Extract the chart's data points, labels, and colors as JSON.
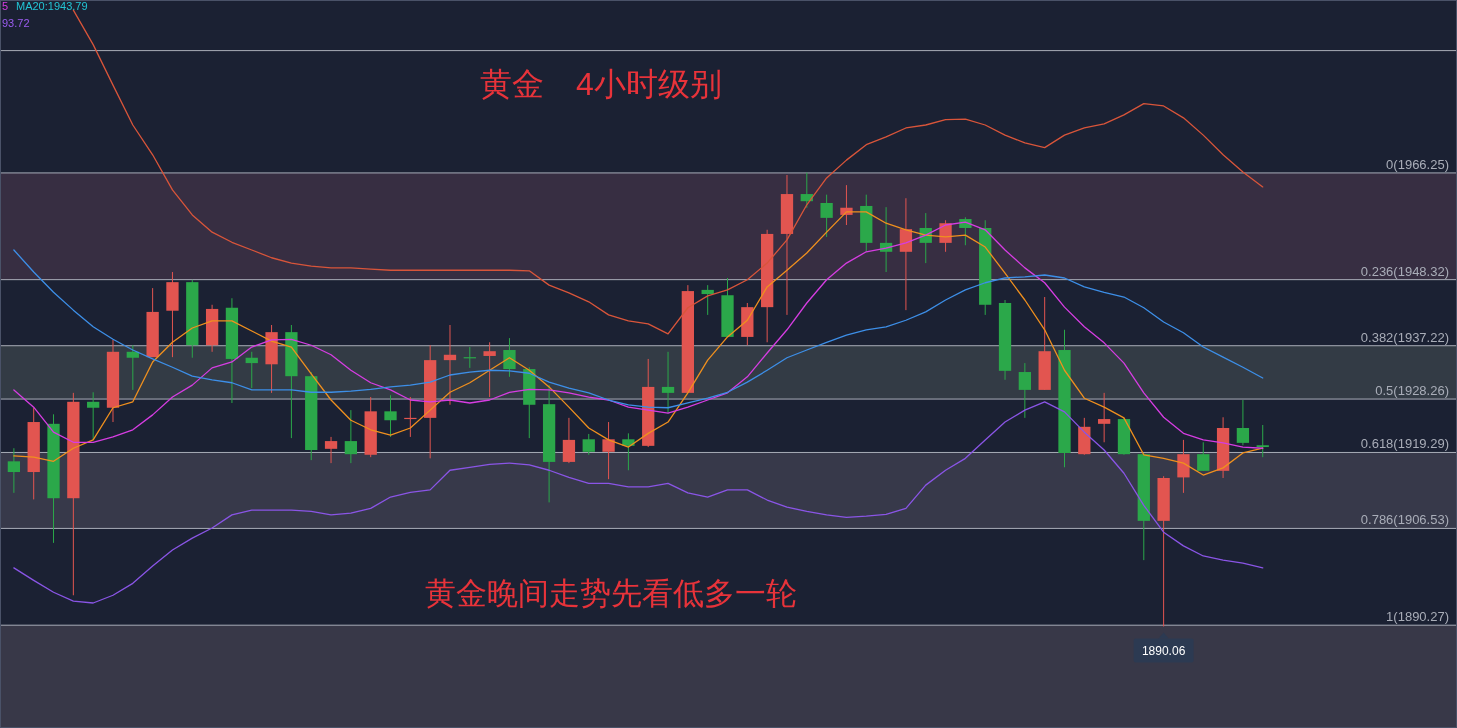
{
  "chart_data": {
    "type": "candlestick",
    "title": "黄金　4小时级别",
    "categories": [
      null,
      null,
      null,
      null,
      null,
      null,
      null,
      null,
      null,
      null,
      null,
      null,
      null,
      null,
      null,
      null,
      null,
      null,
      null,
      null,
      null,
      null,
      null,
      null,
      null,
      null,
      null,
      null,
      null,
      null,
      null,
      null,
      null,
      null,
      null,
      null,
      null,
      null,
      null,
      null,
      null,
      null,
      null,
      null,
      null,
      null,
      null,
      null,
      null,
      null,
      null,
      null,
      null,
      null,
      null,
      null,
      null,
      null,
      null,
      null,
      null,
      null,
      null,
      null
    ],
    "ylim": [
      1873.0,
      1995.3
    ],
    "ohlc": [
      [
        1917.8,
        1920.0,
        1912.5,
        1916.0
      ],
      [
        1916.0,
        1926.8,
        1911.4,
        1924.4
      ],
      [
        1924.1,
        1925.7,
        1904.1,
        1911.6
      ],
      [
        1911.6,
        1929.3,
        1895.3,
        1927.8
      ],
      [
        1927.8,
        1929.4,
        1921.4,
        1926.8
      ],
      [
        1926.8,
        1938.2,
        1924.4,
        1936.2
      ],
      [
        1936.2,
        1937.3,
        1929.8,
        1935.2
      ],
      [
        1935.3,
        1946.9,
        1935.3,
        1942.9
      ],
      [
        1943.1,
        1949.6,
        1935.3,
        1947.9
      ],
      [
        1947.9,
        1948.3,
        1935.2,
        1937.3
      ],
      [
        1937.3,
        1944.1,
        1936.2,
        1943.4
      ],
      [
        1943.6,
        1945.2,
        1927.6,
        1935.0
      ],
      [
        1935.2,
        1936.2,
        1930.1,
        1934.3
      ],
      [
        1934.1,
        1940.7,
        1929.3,
        1939.5
      ],
      [
        1939.5,
        1940.7,
        1921.7,
        1932.1
      ],
      [
        1932.1,
        1932.8,
        1918.0,
        1919.7
      ],
      [
        1919.9,
        1921.9,
        1917.5,
        1921.2
      ],
      [
        1921.2,
        1926.4,
        1917.5,
        1919.0
      ],
      [
        1918.9,
        1928.6,
        1918.5,
        1926.2
      ],
      [
        1926.2,
        1928.9,
        1921.9,
        1924.7
      ],
      [
        1924.9,
        1928.6,
        1921.9,
        1925.1
      ],
      [
        1925.1,
        1937.3,
        1918.3,
        1934.8
      ],
      [
        1934.8,
        1940.7,
        1927.3,
        1935.7
      ],
      [
        1935.3,
        1937.0,
        1933.5,
        1935.2
      ],
      [
        1935.5,
        1937.8,
        1928.6,
        1936.3
      ],
      [
        1936.5,
        1938.5,
        1932.0,
        1933.3
      ],
      [
        1933.3,
        1933.6,
        1921.7,
        1927.3
      ],
      [
        1927.4,
        1930.6,
        1910.9,
        1917.7
      ],
      [
        1917.7,
        1925.1,
        1917.5,
        1921.4
      ],
      [
        1921.5,
        1922.4,
        1918.9,
        1919.4
      ],
      [
        1919.4,
        1924.4,
        1914.8,
        1921.5
      ],
      [
        1921.5,
        1922.5,
        1916.3,
        1920.4
      ],
      [
        1920.4,
        1935.0,
        1920.2,
        1930.3
      ],
      [
        1930.3,
        1936.2,
        1925.9,
        1929.3
      ],
      [
        1929.3,
        1947.4,
        1929.3,
        1946.4
      ],
      [
        1946.6,
        1947.4,
        1942.4,
        1945.9
      ],
      [
        1945.7,
        1948.6,
        1938.7,
        1938.7
      ],
      [
        1938.7,
        1944.4,
        1937.3,
        1943.7
      ],
      [
        1943.7,
        1956.7,
        1937.8,
        1956.0
      ],
      [
        1956.0,
        1965.9,
        1942.4,
        1962.7
      ],
      [
        1962.7,
        1966.3,
        1960.4,
        1961.5
      ],
      [
        1961.2,
        1962.6,
        1955.5,
        1958.7
      ],
      [
        1959.2,
        1964.2,
        1957.5,
        1960.4
      ],
      [
        1960.7,
        1962.6,
        1953.0,
        1954.5
      ],
      [
        1954.5,
        1960.5,
        1949.6,
        1953.0
      ],
      [
        1953.0,
        1962.0,
        1943.2,
        1956.8
      ],
      [
        1957.0,
        1959.5,
        1951.1,
        1954.5
      ],
      [
        1954.5,
        1958.3,
        1953.0,
        1957.8
      ],
      [
        1958.5,
        1958.8,
        1954.1,
        1957.0
      ],
      [
        1957.0,
        1958.3,
        1942.4,
        1944.1
      ],
      [
        1944.4,
        1944.9,
        1931.5,
        1933.0
      ],
      [
        1932.8,
        1934.3,
        1925.1,
        1929.8
      ],
      [
        1929.8,
        1945.4,
        1929.8,
        1936.3
      ],
      [
        1936.5,
        1939.9,
        1916.8,
        1919.2
      ],
      [
        1919.0,
        1925.1,
        1918.9,
        1923.6
      ],
      [
        1924.1,
        1929.3,
        1921.0,
        1924.9
      ],
      [
        1924.9,
        1925.1,
        1918.9,
        1919.0
      ],
      [
        1919.0,
        1919.2,
        1901.2,
        1907.8
      ],
      [
        1907.8,
        1915.3,
        1890.06,
        1915.0
      ],
      [
        1915.1,
        1921.4,
        1912.5,
        1919.0
      ],
      [
        1919.0,
        1921.0,
        1916.2,
        1916.2
      ],
      [
        1916.2,
        1925.2,
        1915.0,
        1923.4
      ],
      [
        1923.4,
        1928.1,
        1920.5,
        1920.9
      ],
      [
        1920.5,
        1923.9,
        1918.5,
        1920.2
      ]
    ],
    "colors": [
      "#2ba84a",
      "#e25550",
      "#2ba84a",
      "#e25550",
      "#2ba84a",
      "#e25550",
      "#2ba84a",
      "#e25550",
      "#e25550",
      "#2ba84a",
      "#e25550",
      "#2ba84a",
      "#2ba84a",
      "#e25550",
      "#2ba84a",
      "#2ba84a",
      "#e25550",
      "#2ba84a",
      "#e25550",
      "#2ba84a",
      "#e25550",
      "#e25550",
      "#e25550",
      "#2ba84a",
      "#e25550",
      "#2ba84a",
      "#2ba84a",
      "#2ba84a",
      "#e25550",
      "#2ba84a",
      "#e25550",
      "#2ba84a",
      "#e25550",
      "#2ba84a",
      "#e25550",
      "#2ba84a",
      "#2ba84a",
      "#e25550",
      "#e25550",
      "#e25550",
      "#2ba84a",
      "#2ba84a",
      "#e25550",
      "#2ba84a",
      "#2ba84a",
      "#e25550",
      "#2ba84a",
      "#e25550",
      "#2ba84a",
      "#2ba84a",
      "#2ba84a",
      "#2ba84a",
      "#e25550",
      "#2ba84a",
      "#e25550",
      "#e25550",
      "#2ba84a",
      "#2ba84a",
      "#e25550",
      "#e25550",
      "#2ba84a",
      "#e25550",
      "#2ba84a",
      "#2ba84a"
    ],
    "series": [
      {
        "type": "line",
        "color": "#f0901e",
        "values": [
          1918.7,
          1918.5,
          1917.8,
          1920.0,
          1921.4,
          1926.8,
          1927.8,
          1934.5,
          1937.8,
          1940.2,
          1941.4,
          1941.4,
          1939.7,
          1938.0,
          1937.0,
          1932.5,
          1928.1,
          1924.7,
          1923.1,
          1922.2,
          1923.4,
          1926.4,
          1929.4,
          1931.0,
          1933.1,
          1935.2,
          1933.1,
          1930.3,
          1926.9,
          1923.4,
          1921.4,
          1920.2,
          1922.5,
          1924.4,
          1929.3,
          1934.8,
          1938.7,
          1941.5,
          1947.1,
          1949.9,
          1952.8,
          1956.3,
          1959.7,
          1959.7,
          1957.8,
          1956.7,
          1955.8,
          1955.5,
          1955.8,
          1953.8,
          1949.4,
          1944.9,
          1939.9,
          1933.1,
          1928.4,
          1926.9,
          1925.1,
          1918.9,
          1918.3,
          1917.5,
          1915.5,
          1916.7,
          1919.2,
          1920.0
        ]
      },
      {
        "type": "line",
        "color": "#d63de2",
        "values": [
          1929.8,
          1926.9,
          1922.7,
          1921.0,
          1921.0,
          1921.9,
          1923.1,
          1925.6,
          1928.6,
          1930.6,
          1933.5,
          1934.5,
          1937.0,
          1938.2,
          1938.3,
          1937.3,
          1935.7,
          1933.1,
          1931.0,
          1929.8,
          1928.1,
          1927.8,
          1928.1,
          1927.6,
          1928.1,
          1929.4,
          1929.9,
          1929.8,
          1929.3,
          1928.6,
          1928.1,
          1926.9,
          1926.4,
          1925.9,
          1926.9,
          1928.1,
          1929.3,
          1932.0,
          1936.0,
          1939.9,
          1944.4,
          1948.3,
          1951.1,
          1953.0,
          1953.6,
          1954.5,
          1955.8,
          1957.5,
          1958.0,
          1956.7,
          1953.3,
          1950.3,
          1947.8,
          1943.7,
          1940.4,
          1937.7,
          1934.3,
          1929.3,
          1925.2,
          1922.5,
          1921.4,
          1920.9,
          1920.2,
          1920.0
        ]
      },
      {
        "type": "line",
        "color": "#3d8fe8",
        "values": [
          1953.3,
          1949.6,
          1946.2,
          1943.2,
          1940.4,
          1938.3,
          1936.5,
          1935.0,
          1933.6,
          1932.1,
          1931.5,
          1931.0,
          1929.8,
          1929.8,
          1929.8,
          1929.4,
          1929.4,
          1929.6,
          1929.9,
          1930.3,
          1930.6,
          1931.1,
          1932.3,
          1932.8,
          1933.1,
          1933.0,
          1932.6,
          1931.1,
          1930.1,
          1929.3,
          1928.1,
          1927.3,
          1926.9,
          1926.8,
          1927.6,
          1928.4,
          1929.4,
          1931.1,
          1933.1,
          1935.2,
          1936.5,
          1937.8,
          1939.0,
          1939.9,
          1940.4,
          1941.5,
          1942.9,
          1944.9,
          1946.6,
          1947.8,
          1948.6,
          1948.8,
          1949.1,
          1948.6,
          1947.1,
          1946.2,
          1945.4,
          1943.6,
          1941.2,
          1939.4,
          1937.0,
          1935.3,
          1933.6,
          1931.8
        ]
      },
      {
        "type": "line",
        "color": "#d9553a",
        "values": [
          null,
          null,
          null,
          1993.6,
          1987.8,
          1981.0,
          1974.3,
          1969.3,
          1963.4,
          1959.2,
          1956.3,
          1954.6,
          1953.3,
          1952.0,
          1951.1,
          1950.6,
          1950.3,
          1950.3,
          1950.1,
          1949.9,
          1949.9,
          1949.9,
          1949.9,
          1949.9,
          1949.9,
          1949.9,
          1949.8,
          1947.4,
          1946.1,
          1944.6,
          1942.4,
          1941.4,
          1940.9,
          1939.2,
          1943.6,
          1945.6,
          1946.6,
          1948.3,
          1951.1,
          1955.0,
          1960.9,
          1965.4,
          1968.4,
          1971.0,
          1972.3,
          1973.8,
          1974.3,
          1975.2,
          1975.3,
          1974.3,
          1972.6,
          1971.3,
          1970.5,
          1972.6,
          1973.8,
          1974.5,
          1976.0,
          1977.9,
          1977.5,
          1975.5,
          1972.6,
          1969.3,
          1966.4,
          1963.9
        ]
      },
      {
        "type": "line",
        "color": "#8a55e6",
        "values": [
          1899.9,
          1897.8,
          1895.8,
          1894.3,
          1894.0,
          1895.3,
          1897.3,
          1900.2,
          1902.9,
          1904.9,
          1906.6,
          1908.8,
          1909.6,
          1909.6,
          1909.6,
          1909.4,
          1908.8,
          1909.1,
          1909.9,
          1911.8,
          1912.6,
          1913.0,
          1916.3,
          1916.8,
          1917.3,
          1917.5,
          1917.2,
          1916.3,
          1915.1,
          1914.1,
          1914.1,
          1913.5,
          1913.5,
          1914.1,
          1912.5,
          1911.8,
          1913.0,
          1913.0,
          1911.3,
          1910.1,
          1909.4,
          1908.8,
          1908.4,
          1908.6,
          1908.9,
          1909.9,
          1913.8,
          1916.3,
          1918.3,
          1921.4,
          1924.4,
          1926.4,
          1927.8,
          1926.1,
          1922.7,
          1919.7,
          1915.8,
          1910.4,
          1905.9,
          1903.6,
          1901.9,
          1901.2,
          1900.7,
          1899.9
        ]
      }
    ],
    "bands": [
      {
        "axis": "y",
        "from": 1948.32,
        "to": 1966.25,
        "color": "#372e42"
      },
      {
        "axis": "y",
        "from": 1928.26,
        "to": 1937.22,
        "color": "#333b45"
      },
      {
        "axis": "y",
        "from": 1906.53,
        "to": 1919.29,
        "color": "#37394a"
      },
      {
        "axis": "y",
        "from": 1873.0,
        "to": 1890.27,
        "color": "#383848"
      }
    ],
    "ref_lines": [
      {
        "axis": "y",
        "value": 1986.8,
        "color": "#a9adb8"
      },
      {
        "axis": "y",
        "value": 1966.25,
        "label": "0(1966.25)",
        "color": "#a9adb8"
      },
      {
        "axis": "y",
        "value": 1948.32,
        "label": "0.236(1948.32)",
        "color": "#a9adb8"
      },
      {
        "axis": "y",
        "value": 1937.22,
        "label": "0.382(1937.22)",
        "color": "#a9adb8"
      },
      {
        "axis": "y",
        "value": 1928.26,
        "label": "0.5(1928.26)",
        "color": "#a9adb8"
      },
      {
        "axis": "y",
        "value": 1919.29,
        "label": "0.618(1919.29)",
        "color": "#a9adb8"
      },
      {
        "axis": "y",
        "value": 1906.53,
        "label": "0.786(1906.53)",
        "color": "#a9adb8"
      },
      {
        "axis": "y",
        "value": 1890.27,
        "label": "1(1890.27)",
        "color": "#a9adb8"
      }
    ],
    "annotations": [
      "黄金晚间走势先看低多一轮",
      "5",
      "MA20:1943.79",
      "93.72",
      {
        "text": "1890.06",
        "y": 1890.06
      }
    ]
  }
}
